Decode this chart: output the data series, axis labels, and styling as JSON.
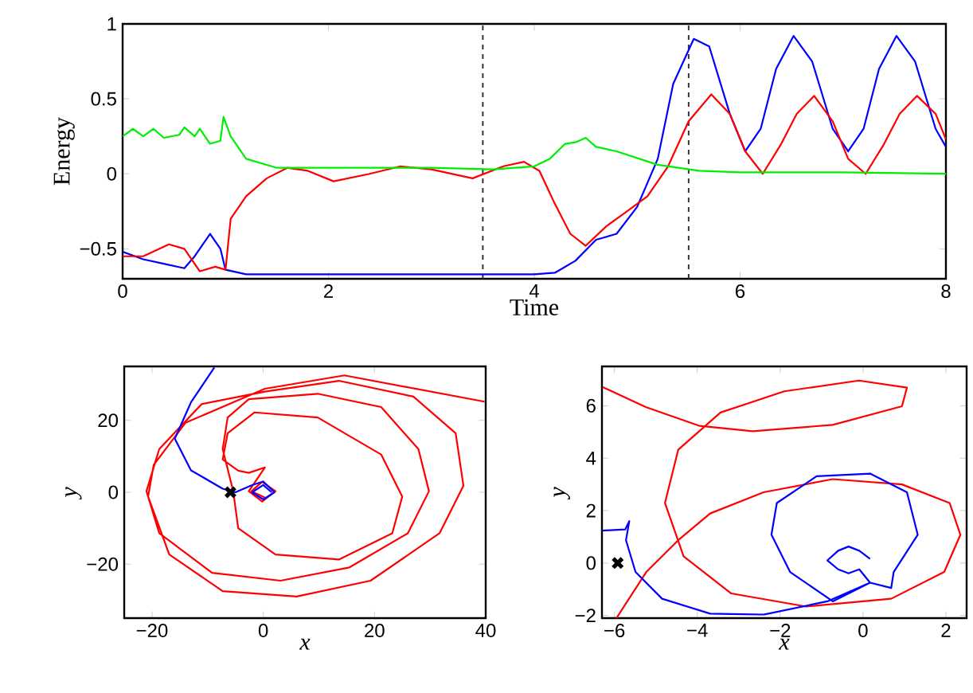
{
  "chart_data": [
    {
      "type": "line",
      "xlabel": "Time",
      "ylabel": "Energy",
      "xlim": [
        0,
        8
      ],
      "ylim": [
        -0.7,
        1
      ],
      "xticks": [
        0,
        2,
        4,
        6,
        8
      ],
      "yticks": [
        {
          "value": -0.5,
          "label": "−0.5"
        },
        0,
        0.5,
        1
      ],
      "line_style": "solid",
      "ref_lines": [
        {
          "axis": "x",
          "value": 3.5,
          "color": "#333333",
          "line_style": "dashed"
        },
        {
          "axis": "x",
          "value": 5.5,
          "color": "#333333",
          "line_style": "dashed"
        }
      ],
      "series": [
        {
          "color": "#0000ff",
          "x": [
            0,
            0.2,
            0.4,
            0.6,
            0.7,
            0.85,
            0.95,
            1.0,
            1.2,
            2,
            3,
            4,
            4.2,
            4.4,
            4.6,
            4.8,
            5.0,
            5.2,
            5.35,
            5.55,
            5.7,
            5.9,
            6.05,
            6.2,
            6.35,
            6.52,
            6.7,
            6.9,
            7.05,
            7.2,
            7.35,
            7.52,
            7.7,
            7.9,
            8
          ],
          "values": [
            -0.52,
            -0.57,
            -0.6,
            -0.63,
            -0.55,
            -0.4,
            -0.5,
            -0.64,
            -0.67,
            -0.67,
            -0.67,
            -0.67,
            -0.66,
            -0.58,
            -0.44,
            -0.4,
            -0.22,
            0.1,
            0.6,
            0.9,
            0.85,
            0.4,
            0.15,
            0.3,
            0.7,
            0.92,
            0.75,
            0.3,
            0.15,
            0.3,
            0.7,
            0.92,
            0.75,
            0.3,
            0.18
          ]
        },
        {
          "color": "#ff0000",
          "x": [
            0,
            0.2,
            0.45,
            0.6,
            0.75,
            0.9,
            1.0,
            1.05,
            1.2,
            1.4,
            1.6,
            1.8,
            2.05,
            2.4,
            2.7,
            3.0,
            3.4,
            3.7,
            3.9,
            4.05,
            4.2,
            4.35,
            4.5,
            4.7,
            4.9,
            5.1,
            5.3,
            5.5,
            5.72,
            5.9,
            6.05,
            6.22,
            6.4,
            6.55,
            6.72,
            6.9,
            7.05,
            7.22,
            7.4,
            7.55,
            7.72,
            7.9,
            8
          ],
          "values": [
            -0.55,
            -0.55,
            -0.47,
            -0.5,
            -0.65,
            -0.62,
            -0.64,
            -0.3,
            -0.15,
            -0.03,
            0.04,
            0.02,
            -0.05,
            0.0,
            0.05,
            0.03,
            -0.03,
            0.05,
            0.08,
            0.02,
            -0.2,
            -0.4,
            -0.48,
            -0.35,
            -0.25,
            -0.15,
            0.05,
            0.35,
            0.53,
            0.4,
            0.15,
            0.0,
            0.2,
            0.4,
            0.52,
            0.35,
            0.1,
            0.0,
            0.2,
            0.4,
            0.52,
            0.4,
            0.23
          ]
        },
        {
          "color": "#00ee00",
          "x": [
            0,
            0.1,
            0.2,
            0.3,
            0.4,
            0.55,
            0.6,
            0.7,
            0.75,
            0.85,
            0.95,
            0.98,
            1.05,
            1.2,
            1.5,
            2,
            3,
            3.6,
            4,
            4.15,
            4.3,
            4.4,
            4.5,
            4.6,
            4.8,
            5.2,
            5.6,
            6,
            7,
            8
          ],
          "values": [
            0.25,
            0.3,
            0.25,
            0.3,
            0.24,
            0.26,
            0.31,
            0.25,
            0.3,
            0.2,
            0.22,
            0.38,
            0.25,
            0.1,
            0.04,
            0.04,
            0.04,
            0.03,
            0.05,
            0.1,
            0.2,
            0.21,
            0.24,
            0.18,
            0.15,
            0.06,
            0.02,
            0.01,
            0.01,
            0.0
          ]
        }
      ]
    },
    {
      "type": "line",
      "xlabel": "x",
      "ylabel": "y",
      "xlim": [
        -25,
        40
      ],
      "ylim": [
        -35,
        35
      ],
      "xticks": [
        {
          "value": -20,
          "label": "−20"
        },
        0,
        20,
        40
      ],
      "yticks": [
        {
          "value": -20,
          "label": "−20"
        },
        0,
        20
      ],
      "line_style": "solid",
      "series": [
        {
          "color": "#ff0000",
          "x": [
            39.8,
            14.6,
            0.3,
            -14,
            -19.7,
            -20.7,
            -16.9,
            -7.3,
            6,
            19.3,
            31.7,
            36,
            34.6,
            27,
            13.6,
            0.3,
            -11.1,
            -18.7,
            -21,
            -18.7,
            -9.2,
            3.1,
            15.5,
            26,
            29.8,
            27.9,
            21.2,
            9.8,
            -2.6,
            -6.4,
            -7.3,
            -5.4,
            -4.5,
            2.2,
            13.6,
            23.2,
            25,
            21.2,
            9.8,
            -1.6,
            -6.4,
            -7.3,
            -4.5,
            -2.6,
            0.3,
            -2.6,
            -0.2,
            2.2,
            -0.2,
            -2.1,
            0.3
          ],
          "values": [
            25.2,
            32.5,
            28.8,
            19.3,
            7.6,
            -1.2,
            -17.3,
            -27.5,
            -29,
            -24.6,
            -11.4,
            1.8,
            16.4,
            26.6,
            31,
            28,
            24.5,
            12,
            0.3,
            -11.4,
            -22.4,
            -24.6,
            -20.9,
            -11.4,
            0.3,
            12,
            23.7,
            27.4,
            25.9,
            20.8,
            12,
            0.3,
            -10,
            -17.3,
            -18.7,
            -11.4,
            -1.2,
            10.5,
            20.8,
            22.2,
            16.4,
            9.1,
            6,
            5.4,
            6.9,
            0.3,
            -2.6,
            0.3,
            2.9,
            0.3,
            -1.5
          ]
        },
        {
          "color": "#0000ff",
          "x": [
            -8.8,
            -13,
            -15.9,
            -13,
            -7.3,
            -5,
            -2,
            0,
            2,
            0,
            -2,
            0,
            1.5
          ],
          "values": [
            34.7,
            25,
            14.9,
            6.1,
            1,
            0,
            2,
            3,
            0,
            -2,
            0,
            2,
            0
          ]
        },
        {
          "type": "scatter",
          "marker": "cross",
          "color": "#000000",
          "x": [
            -5.9
          ],
          "values": [
            0
          ]
        }
      ]
    },
    {
      "type": "line",
      "xlabel": "x",
      "ylabel": "y",
      "xlim": [
        -6.3,
        2.5
      ],
      "ylim": [
        -2.1,
        7.5
      ],
      "xticks": [
        {
          "value": -6,
          "label": "−6"
        },
        {
          "value": -4,
          "label": "−4"
        },
        {
          "value": -2,
          "label": "−2"
        },
        0,
        2
      ],
      "yticks": [
        {
          "value": -2,
          "label": "−2"
        },
        0,
        2,
        4,
        6
      ],
      "line_style": "solid",
      "series": [
        {
          "color": "#ff0000",
          "x": [
            -5.95,
            -5.23,
            -4.46,
            -3.69,
            -2.4,
            -0.73,
            0.94,
            2.09,
            2.35,
            1.96,
            0.68,
            -1.37,
            -3.18,
            -4.33,
            -4.78,
            -4.46,
            -3.44,
            -1.9,
            -0.1,
            1.06,
            0.94,
            -0.73,
            -2.66,
            -3.94,
            -5.23,
            -6.28
          ],
          "values": [
            -2.1,
            -0.34,
            0.87,
            1.89,
            2.7,
            3.2,
            3.0,
            2.29,
            1.08,
            -0.34,
            -1.36,
            -1.66,
            -1.16,
            0.26,
            2.29,
            4.32,
            5.74,
            6.55,
            6.96,
            6.69,
            5.98,
            5.27,
            5.03,
            5.23,
            5.94,
            6.71
          ]
        },
        {
          "color": "#0000ff",
          "x": [
            -6.28,
            -5.74,
            -5.64,
            -5.72,
            -5.49,
            -4.85,
            -3.69,
            -2.4,
            -0.86,
            0.17,
            0.68,
            0.74,
            1.32,
            1.06,
            0.17,
            -1.12,
            -2.08,
            -2.21,
            -1.76,
            -0.73,
            0.17,
            -0.09,
            -0.35,
            -0.6,
            -0.86,
            -0.6,
            -0.35,
            -0.09,
            0.17
          ],
          "values": [
            1.24,
            1.28,
            1.6,
            0.87,
            -0.34,
            -1.36,
            -1.93,
            -1.97,
            -1.46,
            -0.75,
            -0.95,
            -0.34,
            1.08,
            2.7,
            3.41,
            3.31,
            2.29,
            1.08,
            -0.34,
            -1.46,
            -0.75,
            -0.24,
            -0.39,
            -0.24,
            0.1,
            0.47,
            0.63,
            0.47,
            0.16
          ]
        },
        {
          "type": "scatter",
          "marker": "cross",
          "color": "#000000",
          "x": [
            -5.92
          ],
          "values": [
            0
          ]
        }
      ]
    }
  ]
}
